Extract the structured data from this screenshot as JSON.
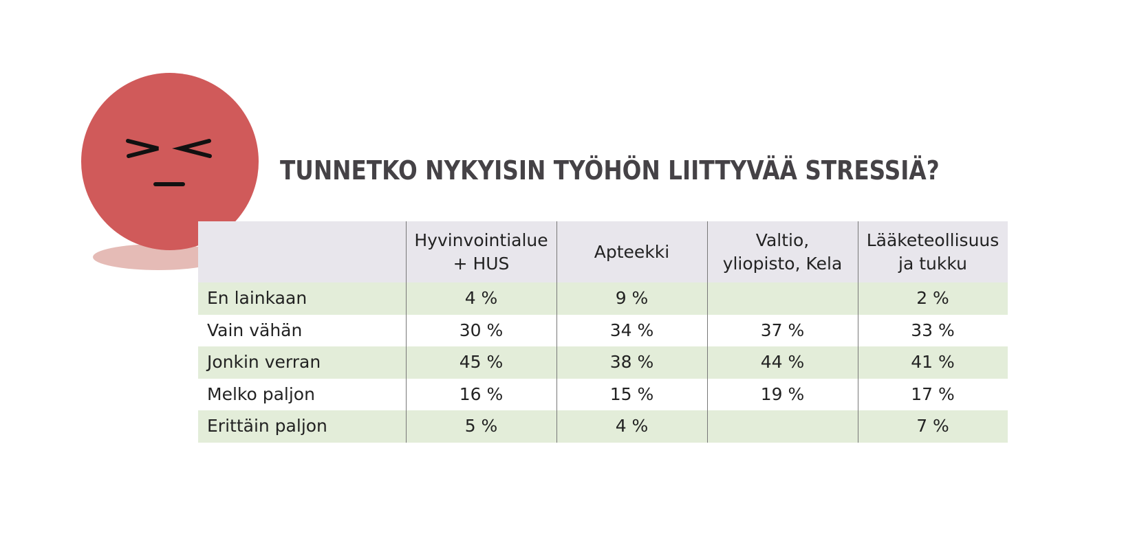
{
  "title": "TUNNETKO NYKYISIN TYÖHÖN LIITTYVÄÄ STRESSIÄ?",
  "table": {
    "columns": [
      [
        "Hyvinvointialue",
        "+ HUS"
      ],
      [
        "Apteekki"
      ],
      [
        "Valtio,",
        "yliopisto, Kela"
      ],
      [
        "Lääketeollisuus",
        "ja tukku"
      ]
    ],
    "rows": [
      {
        "label": "En lainkaan",
        "values": [
          "4 %",
          "9 %",
          null,
          "2 %"
        ]
      },
      {
        "label": "Vain vähän",
        "values": [
          "30 %",
          "34 %",
          "37 %",
          "33 %"
        ]
      },
      {
        "label": "Jonkin verran",
        "values": [
          "45 %",
          "38 %",
          "44 %",
          "41 %"
        ]
      },
      {
        "label": "Melko paljon",
        "values": [
          "16 %",
          "15 %",
          "19 %",
          "17 %"
        ]
      },
      {
        "label": "Erittäin paljon",
        "values": [
          "5 %",
          "4 %",
          null,
          "7 %"
        ]
      }
    ]
  }
}
